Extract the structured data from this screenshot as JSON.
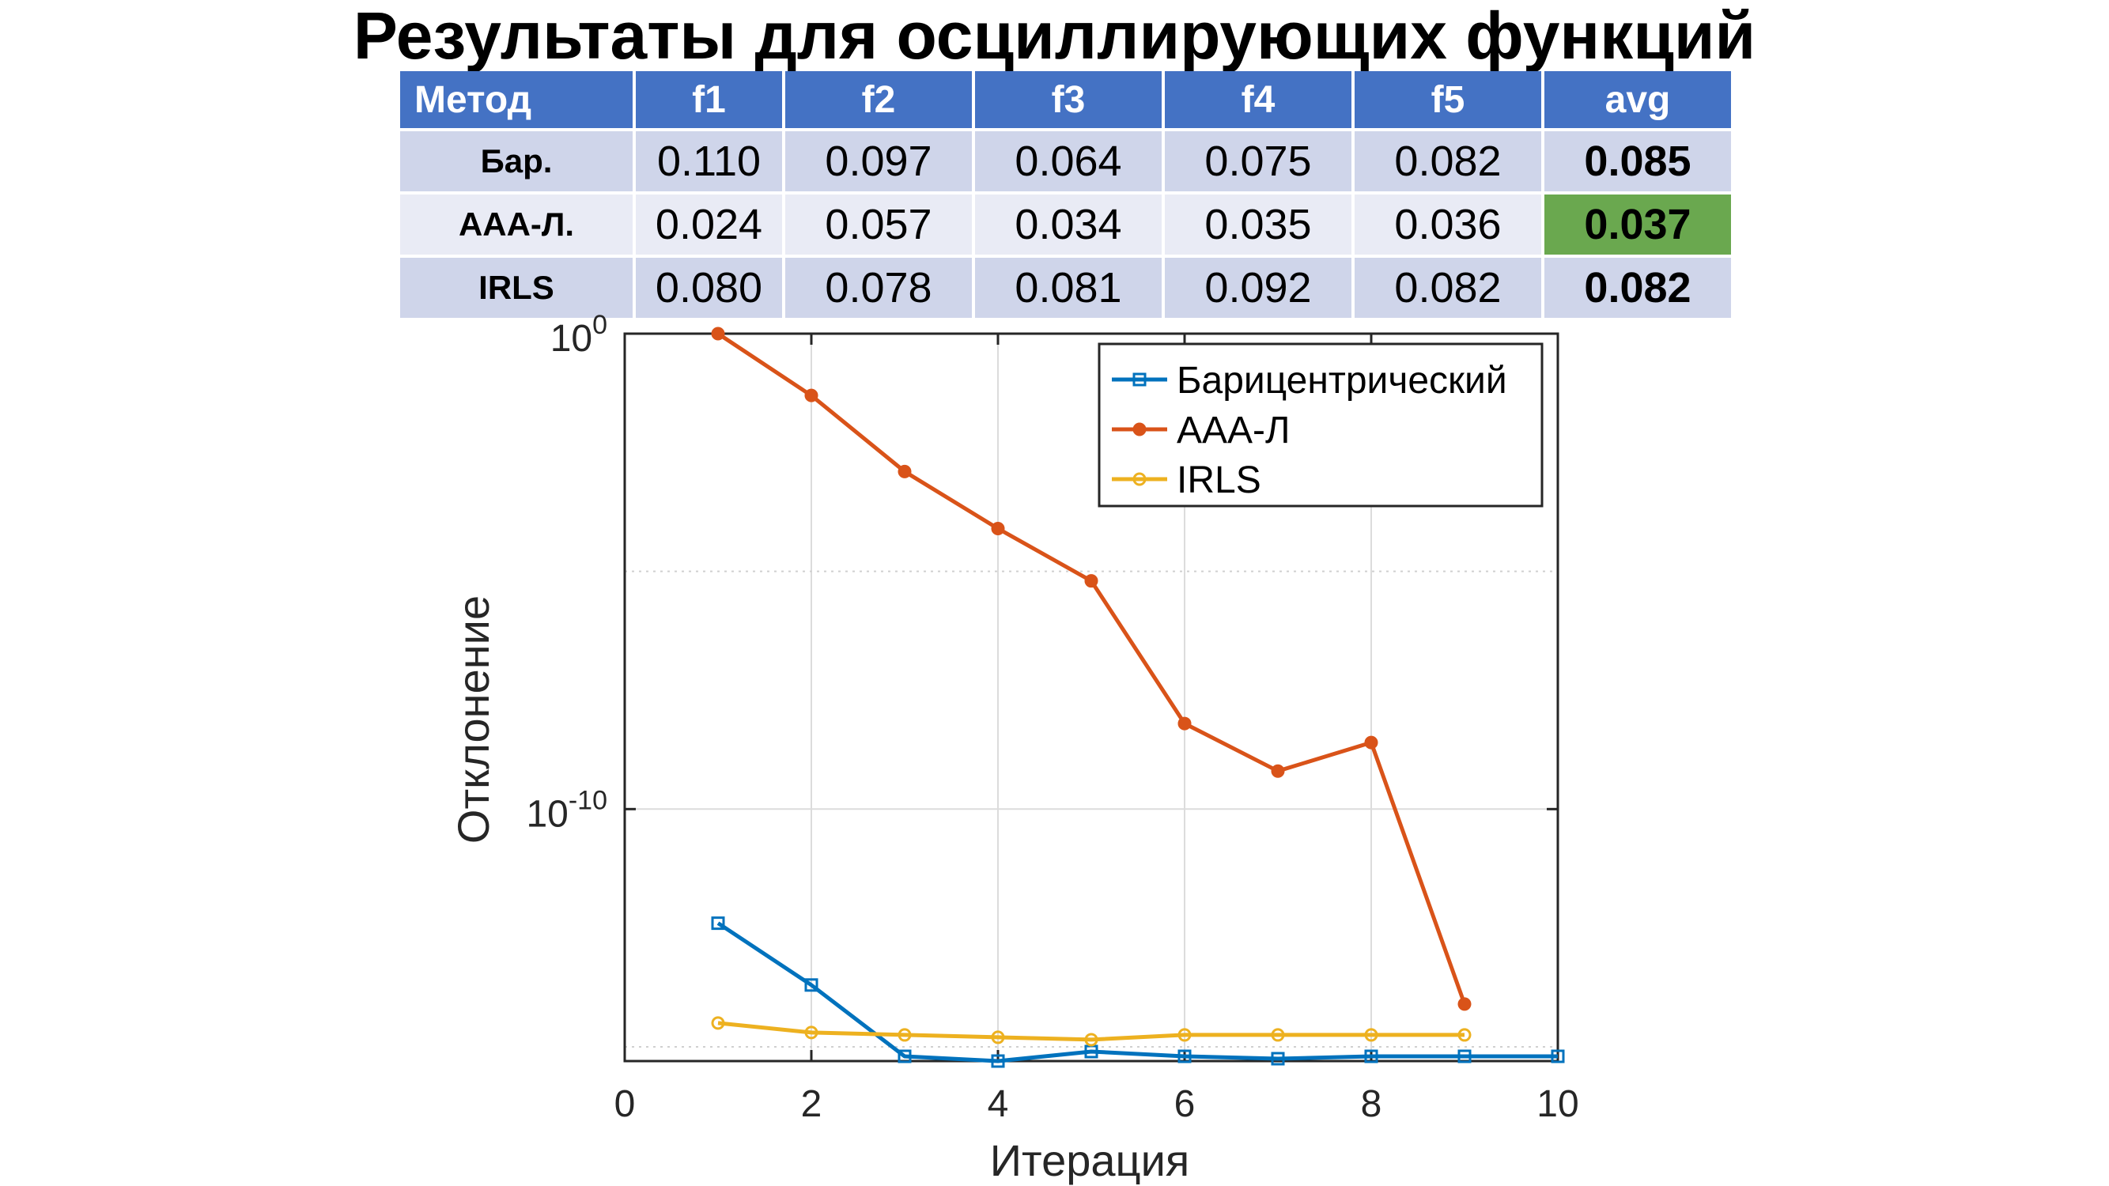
{
  "title": "Результаты для осциллирующих функций",
  "table": {
    "headers": [
      "Метод",
      "f1",
      "f2",
      "f3",
      "f4",
      "f5",
      "avg"
    ],
    "rows": [
      {
        "method": "Бар.",
        "values": [
          "0.110",
          "0.097",
          "0.064",
          "0.075",
          "0.082"
        ],
        "avg": "0.085",
        "best": false
      },
      {
        "method": "ААА-Л.",
        "values": [
          "0.024",
          "0.057",
          "0.034",
          "0.035",
          "0.036"
        ],
        "avg": "0.037",
        "best": true
      },
      {
        "method": "IRLS",
        "values": [
          "0.080",
          "0.078",
          "0.081",
          "0.092",
          "0.082"
        ],
        "avg": "0.082",
        "best": false
      }
    ],
    "colors": {
      "header": "#4472c4",
      "row_odd": "#cfd5ea",
      "row_even": "#e9ebf5",
      "best": "#6aa84f"
    }
  },
  "chart_data": {
    "type": "line",
    "xlabel": "Итерация",
    "ylabel": "Отклонение",
    "xlim": [
      0,
      10
    ],
    "ylim_log10": [
      -15.3,
      0
    ],
    "y_scale": "log",
    "grid": true,
    "legend_position": "top-right",
    "x_ticks": [
      0,
      2,
      4,
      6,
      8,
      10
    ],
    "y_ticks": [
      {
        "base": "10",
        "exp": "0",
        "log10": 0
      },
      {
        "base": "10",
        "exp": "-10",
        "log10": -10
      }
    ],
    "series": [
      {
        "name": "Барицентрический",
        "color": "#0072bd",
        "marker": "square",
        "x": [
          1,
          2,
          3,
          4,
          5,
          6,
          7,
          8,
          9,
          10
        ],
        "log10_y": [
          -12.4,
          -13.7,
          -15.2,
          -15.3,
          -15.1,
          -15.2,
          -15.25,
          -15.2,
          -15.2,
          -15.2
        ]
      },
      {
        "name": "ААА-Л",
        "color": "#d95319",
        "marker": "circle",
        "x": [
          1,
          2,
          3,
          4,
          5,
          6,
          7,
          8,
          9
        ],
        "log10_y": [
          0.0,
          -1.3,
          -2.9,
          -4.1,
          -5.2,
          -8.2,
          -9.2,
          -8.6,
          -14.1
        ]
      },
      {
        "name": "IRLS",
        "color": "#edb120",
        "marker": "circle",
        "x": [
          1,
          2,
          3,
          4,
          5,
          6,
          7,
          8,
          9
        ],
        "log10_y": [
          -14.5,
          -14.7,
          -14.75,
          -14.8,
          -14.85,
          -14.75,
          -14.75,
          -14.75,
          -14.75
        ]
      }
    ]
  }
}
